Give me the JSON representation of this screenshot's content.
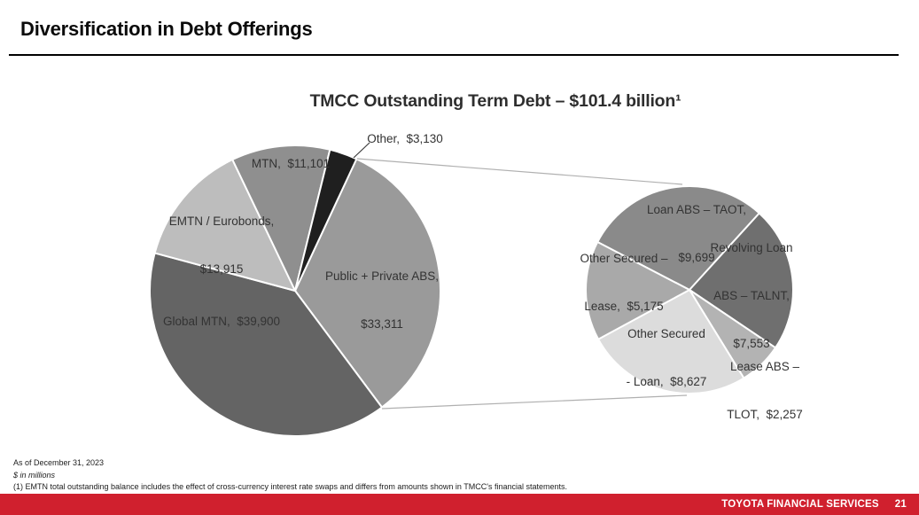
{
  "slide": {
    "heading": "Diversification in Debt Offerings",
    "notes": [
      "As of December 31, 2023",
      "$ in millions",
      "(1) EMTN total outstanding balance includes the effect of cross-currency interest rate swaps and differs from amounts shown in TMCC's financial statements."
    ],
    "footer": {
      "brand": "TOYOTA FINANCIAL SERVICES",
      "page": "21",
      "bar_color": "#d0202e"
    }
  },
  "chart_data": [
    {
      "type": "pie",
      "title": "TMCC Outstanding Term Debt – $101.4 billion¹",
      "total": 101356,
      "start_angle_deg": 25,
      "center": [
        333,
        328
      ],
      "radius": 164,
      "slices": [
        {
          "label": "Public + Private ABS",
          "value": 33311,
          "color": "#9a9a9a",
          "label_lines": [
            "Public + Private ABS,",
            "$33,311"
          ]
        },
        {
          "label": "Global MTN",
          "value": 39900,
          "color": "#646464",
          "label_lines": [
            "Global MTN,  $39,900"
          ]
        },
        {
          "label": "EMTN / Eurobonds",
          "value": 13915,
          "color": "#bdbdbd",
          "label_lines": [
            "EMTN / Eurobonds,",
            "$13,915"
          ]
        },
        {
          "label": "MTN",
          "value": 11101,
          "color": "#8f8f8f",
          "label_lines": [
            "MTN,  $11,101"
          ]
        },
        {
          "label": "Other",
          "value": 3130,
          "color": "#1f1f1f",
          "label_lines": [
            "Other,  $3,130"
          ]
        }
      ]
    },
    {
      "type": "pie",
      "title": "",
      "total": 33311,
      "start_angle_deg": 297.5,
      "center": [
        778,
        327
      ],
      "radius": 117,
      "slices": [
        {
          "label": "Loan ABS – TAOT",
          "value": 9699,
          "color": "#8a8a8a",
          "label_lines": [
            "Loan ABS – TAOT,",
            "$9,699"
          ]
        },
        {
          "label": "Revolving Loan ABS – TALNT",
          "value": 7553,
          "color": "#6f6f6f",
          "label_lines": [
            "Revolving Loan",
            "ABS – TALNT,",
            "$7,553"
          ]
        },
        {
          "label": "Lease ABS – TLOT",
          "value": 2257,
          "color": "#b3b3b3",
          "label_lines": [
            "Lease ABS –",
            "TLOT,  $2,257"
          ]
        },
        {
          "label": "Other Secured – Loan",
          "value": 8627,
          "color": "#dcdcdc",
          "label_lines": [
            "Other Secured",
            "- Loan,  $8,627"
          ]
        },
        {
          "label": "Other Secured – Lease",
          "value": 5175,
          "color": "#a9a9a9",
          "label_lines": [
            "Other Secured –",
            "Lease,  $5,175"
          ]
        }
      ]
    }
  ]
}
